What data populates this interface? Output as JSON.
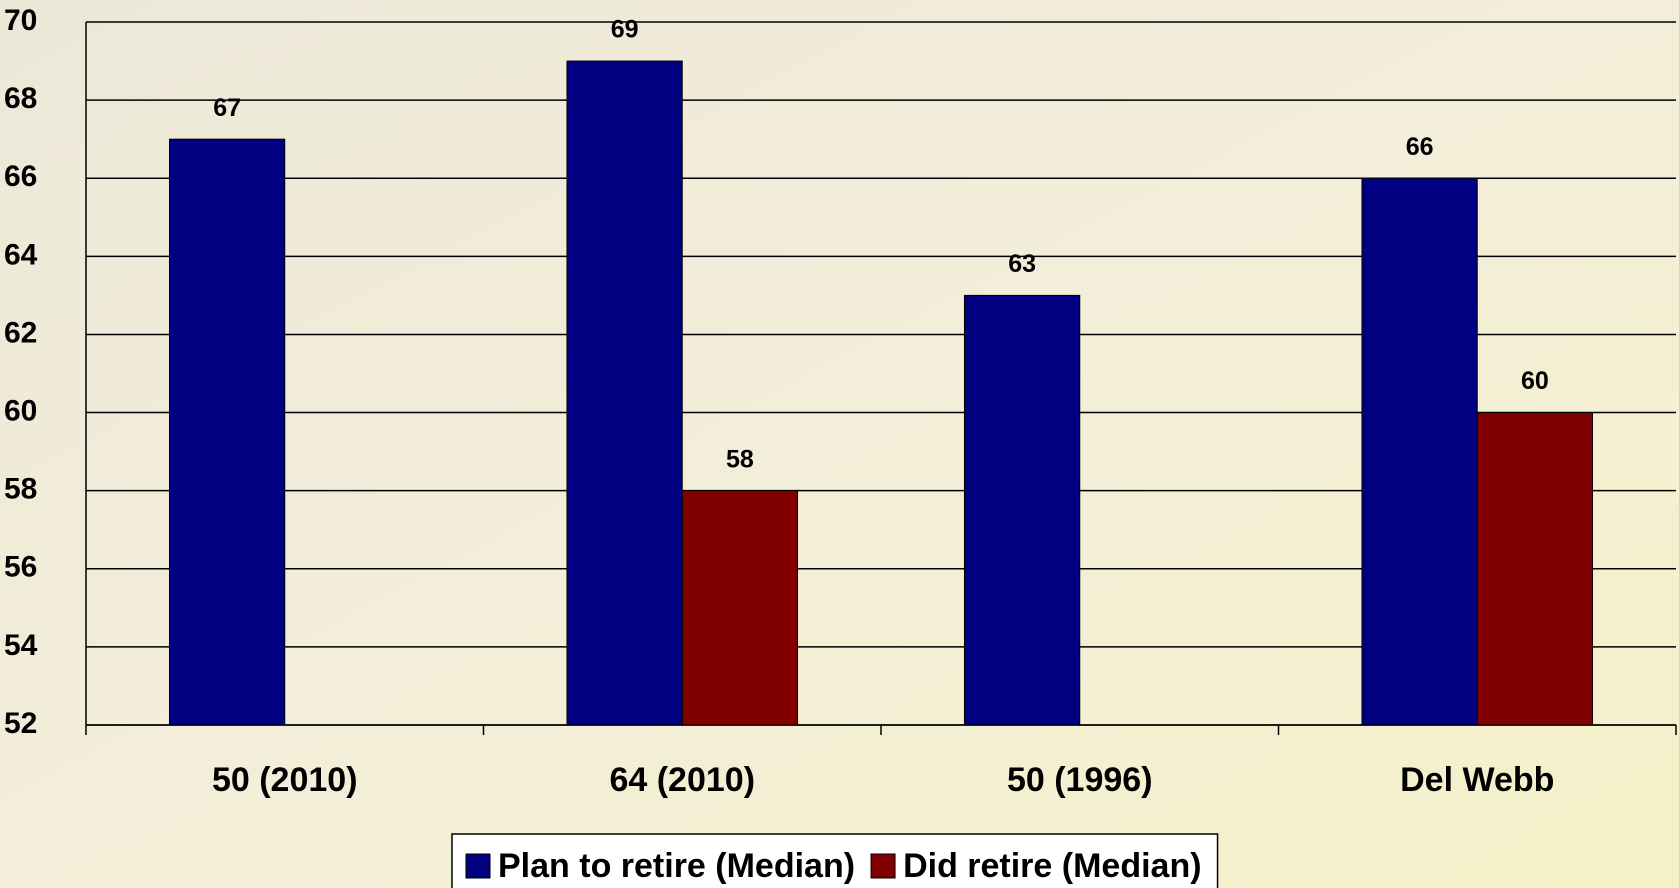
{
  "chart_data": {
    "type": "bar",
    "categories": [
      "50 (2010)",
      "64 (2010)",
      "50 (1996)",
      "Del Webb"
    ],
    "series": [
      {
        "name": "Plan to retire (Median)",
        "color": "#000080",
        "values": [
          67,
          69,
          63,
          66
        ]
      },
      {
        "name": "Did retire (Median)",
        "color": "#800000",
        "values": [
          null,
          58,
          null,
          60
        ]
      }
    ],
    "ylim": [
      52,
      70
    ],
    "yticks": [
      52,
      54,
      56,
      58,
      60,
      62,
      64,
      66,
      68,
      70
    ],
    "grid": true,
    "legend": "bottom"
  }
}
